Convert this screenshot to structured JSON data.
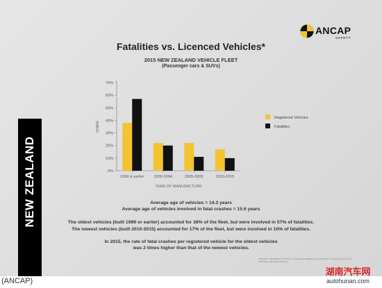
{
  "header": {
    "title": "Fatalities vs. Licenced Vehicles*",
    "subtitle_line1": "2015 NEW ZEALAND VEHICLE FLEET",
    "subtitle_line2": "(Passenger cars & SUVs)"
  },
  "logo": {
    "name": "ANCAP",
    "tagline": "SAFETY"
  },
  "side_label": "NEW ZEALAND",
  "colors": {
    "registered": "#f4c430",
    "fatalities": "#111111",
    "side_bar": "#000000"
  },
  "chart_data": {
    "type": "bar",
    "categories": [
      "1999 & earlier",
      "2000-2004",
      "2005-2009",
      "2010-2015"
    ],
    "series": [
      {
        "name": "Registered Vehicles",
        "values": [
          38,
          22,
          22,
          17
        ]
      },
      {
        "name": "Fatalities",
        "values": [
          57,
          20,
          11,
          10
        ]
      }
    ],
    "ylabel": "SHARE",
    "xlabel": "YEAR OF MANUFACTURE",
    "ylim": [
      0,
      70
    ],
    "yticks": [
      "0%",
      "10%",
      "20%",
      "30%",
      "40%",
      "50%",
      "60%",
      "70%"
    ],
    "legend": "right",
    "grid": false
  },
  "stats": {
    "avg_age": "Average age of vehicles = 14.3 years",
    "avg_age_fatal": "Average age of vehicles involved in fatal crashes = 15.6 years",
    "oldest": "The oldest vehicles (built 1999 or earlier) accounted for 38% of the fleet, but were involved in 57% of fatalities.",
    "newest": "The newest vehicles (built 2010-2015) accounted for 17% of the fleet, but were involved in 10% of fatalities.",
    "rate_line1": "In 2015, the rate of fatal crashes per registered vehicle for the oldest vehicles",
    "rate_line2": "was 2 times higher than that of the newest vehicles."
  },
  "footnote": "*SOURCE - NZ Ministry of Transport: Annual Fleet Statistics (August 2016). The speed limit in force at crash sites was below 100 km/h.",
  "credit": "(ANCAP)",
  "watermark": {
    "name": "湖南汽车网",
    "url": "autohunan.com"
  }
}
